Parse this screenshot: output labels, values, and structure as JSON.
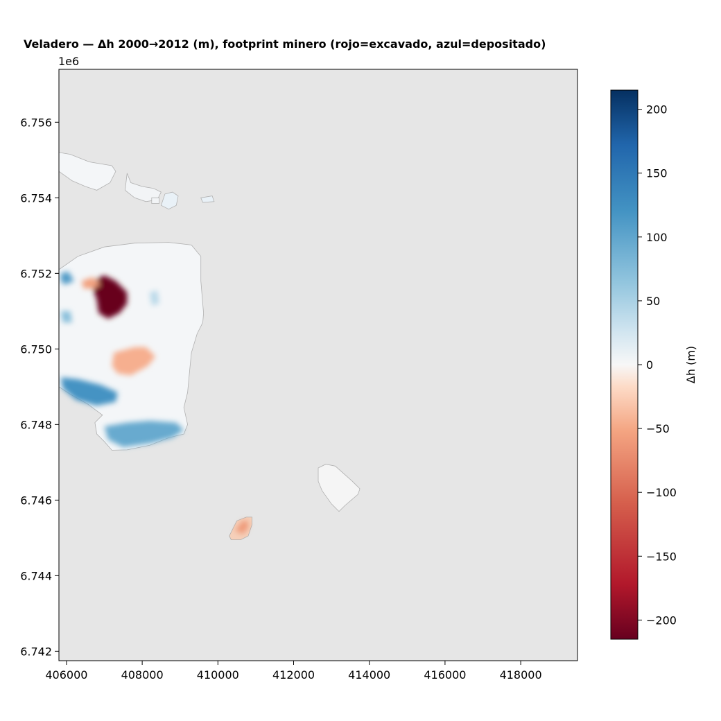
{
  "chart_data": {
    "type": "heatmap",
    "title": "Veladero — Δh 2000→2012 (m), footprint minero (rojo=excavado, azul=depositado)",
    "xlabel": "",
    "ylabel": "",
    "y_offset_label": "1e6",
    "xlim": [
      405800,
      419500
    ],
    "ylim": [
      6741750,
      6757400
    ],
    "x_ticks": [
      406000,
      408000,
      410000,
      412000,
      414000,
      416000,
      418000
    ],
    "x_tick_labels": [
      "406000",
      "408000",
      "410000",
      "412000",
      "414000",
      "416000",
      "418000"
    ],
    "y_ticks": [
      6742000,
      6744000,
      6746000,
      6748000,
      6750000,
      6752000,
      6754000,
      6756000
    ],
    "y_tick_labels": [
      "6.742",
      "6.744",
      "6.746",
      "6.748",
      "6.750",
      "6.752",
      "6.754",
      "6.756"
    ],
    "colorbar": {
      "label": "Δh (m)",
      "colormap": "RdBu",
      "vmin": -215,
      "vmax": 215,
      "ticks": [
        -200,
        -150,
        -100,
        -50,
        0,
        50,
        100,
        150,
        200
      ],
      "tick_labels": [
        "−200",
        "−150",
        "−100",
        "−50",
        "0",
        "50",
        "100",
        "150",
        "200"
      ]
    },
    "background_color": "#e6e6e6",
    "footprints": [
      {
        "name": "main-footprint",
        "fill": "#f4f6f8",
        "polygon": [
          [
            405800,
            6752100
          ],
          [
            406300,
            6752450
          ],
          [
            407000,
            6752700
          ],
          [
            407800,
            6752800
          ],
          [
            408700,
            6752820
          ],
          [
            409300,
            6752750
          ],
          [
            409550,
            6752450
          ],
          [
            409550,
            6751800
          ],
          [
            409620,
            6750950
          ],
          [
            409600,
            6750700
          ],
          [
            409450,
            6750400
          ],
          [
            409300,
            6749900
          ],
          [
            409250,
            6749400
          ],
          [
            409200,
            6748850
          ],
          [
            409100,
            6748450
          ],
          [
            409200,
            6748000
          ],
          [
            409100,
            6747750
          ],
          [
            408700,
            6747650
          ],
          [
            408200,
            6747450
          ],
          [
            407600,
            6747330
          ],
          [
            407200,
            6747320
          ],
          [
            407000,
            6747550
          ],
          [
            406800,
            6747750
          ],
          [
            406750,
            6748050
          ],
          [
            406950,
            6748250
          ],
          [
            406550,
            6748550
          ],
          [
            406100,
            6748800
          ],
          [
            405800,
            6749000
          ]
        ]
      },
      {
        "name": "nw-patch-1",
        "fill": "#f4f6f8",
        "polygon": [
          [
            405800,
            6755200
          ],
          [
            406100,
            6755150
          ],
          [
            406600,
            6754950
          ],
          [
            407200,
            6754850
          ],
          [
            407300,
            6754700
          ],
          [
            407150,
            6754400
          ],
          [
            406800,
            6754200
          ],
          [
            406500,
            6754300
          ],
          [
            406150,
            6754450
          ],
          [
            405800,
            6754700
          ]
        ]
      },
      {
        "name": "nw-patch-2",
        "fill": "#f2f4f6",
        "polygon": [
          [
            407600,
            6754650
          ],
          [
            407700,
            6754400
          ],
          [
            408000,
            6754300
          ],
          [
            408300,
            6754250
          ],
          [
            408500,
            6754150
          ],
          [
            408400,
            6753950
          ],
          [
            408100,
            6753900
          ],
          [
            407800,
            6754000
          ],
          [
            407550,
            6754200
          ]
        ]
      },
      {
        "name": "nw-patch-3",
        "fill": "#e9f1f7",
        "polygon": [
          [
            408600,
            6754100
          ],
          [
            408800,
            6754150
          ],
          [
            408950,
            6754050
          ],
          [
            408900,
            6753800
          ],
          [
            408700,
            6753700
          ],
          [
            408500,
            6753800
          ]
        ]
      },
      {
        "name": "nw-patch-4",
        "fill": "#f2f4f6",
        "polygon": [
          [
            408250,
            6754000
          ],
          [
            408450,
            6754000
          ],
          [
            408450,
            6753850
          ],
          [
            408250,
            6753850
          ]
        ]
      },
      {
        "name": "nw-patch-5",
        "fill": "#e9f1f7",
        "polygon": [
          [
            409550,
            6754000
          ],
          [
            409850,
            6754050
          ],
          [
            409900,
            6753900
          ],
          [
            409600,
            6753880
          ]
        ]
      },
      {
        "name": "se-patch",
        "fill": "#f5f5f5",
        "polygon": [
          [
            412650,
            6746850
          ],
          [
            412850,
            6746950
          ],
          [
            413100,
            6746900
          ],
          [
            413550,
            6746500
          ],
          [
            413750,
            6746300
          ],
          [
            413700,
            6746150
          ],
          [
            413350,
            6745850
          ],
          [
            413200,
            6745700
          ],
          [
            413000,
            6745900
          ],
          [
            412750,
            6746250
          ],
          [
            412650,
            6746500
          ]
        ]
      },
      {
        "name": "south-patch",
        "fill": "#f5d0ba",
        "polygon": [
          [
            410300,
            6745050
          ],
          [
            410500,
            6745450
          ],
          [
            410750,
            6745550
          ],
          [
            410900,
            6745550
          ],
          [
            410900,
            6745350
          ],
          [
            410800,
            6745050
          ],
          [
            410600,
            6744950
          ],
          [
            410350,
            6744950
          ]
        ]
      }
    ],
    "anomalies": [
      {
        "name": "excavated-pit-north",
        "value": -215,
        "polygon": [
          [
            406800,
            6751850
          ],
          [
            407000,
            6751950
          ],
          [
            407300,
            6751800
          ],
          [
            407600,
            6751500
          ],
          [
            407600,
            6751200
          ],
          [
            407400,
            6750950
          ],
          [
            407100,
            6750800
          ],
          [
            406850,
            6750950
          ],
          [
            406800,
            6751300
          ],
          [
            406700,
            6751600
          ]
        ]
      },
      {
        "name": "excavated-pit-south",
        "value": -215,
        "polygon": [
          [
            407400,
            6749800
          ],
          [
            407700,
            6749850
          ],
          [
            407850,
            6749950
          ],
          [
            408000,
            6750000
          ],
          [
            408100,
            6749800
          ],
          [
            408200,
            6749700
          ],
          [
            407950,
            6749500
          ],
          [
            407650,
            6749400
          ],
          [
            407450,
            6749350
          ],
          [
            407300,
            6749500
          ],
          [
            407300,
            6749650
          ]
        ]
      },
      {
        "name": "excavation-rim-north",
        "value": -55,
        "polygon": [
          [
            406400,
            6751800
          ],
          [
            406700,
            6751900
          ],
          [
            406900,
            6751700
          ],
          [
            406700,
            6751600
          ],
          [
            406450,
            6751600
          ]
        ]
      },
      {
        "name": "excavation-rim-south",
        "value": -45,
        "polygon": [
          [
            407250,
            6749900
          ],
          [
            407800,
            6750050
          ],
          [
            408100,
            6750050
          ],
          [
            408350,
            6749800
          ],
          [
            408150,
            6749550
          ],
          [
            407700,
            6749300
          ],
          [
            407350,
            6749350
          ],
          [
            407200,
            6749550
          ]
        ]
      },
      {
        "name": "deposit-band-west",
        "value": 120,
        "polygon": [
          [
            405850,
            6749250
          ],
          [
            406300,
            6749200
          ],
          [
            406900,
            6749050
          ],
          [
            407350,
            6748850
          ],
          [
            407300,
            6748600
          ],
          [
            406800,
            6748500
          ],
          [
            406250,
            6748650
          ],
          [
            405900,
            6748950
          ]
        ]
      },
      {
        "name": "deposit-band-south",
        "value": 95,
        "polygon": [
          [
            407000,
            6747950
          ],
          [
            407600,
            6748050
          ],
          [
            408200,
            6748100
          ],
          [
            408900,
            6748050
          ],
          [
            409100,
            6747850
          ],
          [
            408800,
            6747650
          ],
          [
            408200,
            6747500
          ],
          [
            407500,
            6747400
          ],
          [
            407100,
            6747600
          ]
        ]
      },
      {
        "name": "deposit-edge-nw",
        "value": 110,
        "polygon": [
          [
            405850,
            6752000
          ],
          [
            406050,
            6752050
          ],
          [
            406200,
            6751800
          ],
          [
            405950,
            6751700
          ],
          [
            405850,
            6751800
          ]
        ]
      },
      {
        "name": "deposit-edge-w",
        "value": 70,
        "polygon": [
          [
            405850,
            6751000
          ],
          [
            406100,
            6751000
          ],
          [
            406150,
            6750700
          ],
          [
            405900,
            6750700
          ]
        ]
      },
      {
        "name": "deposit-inner",
        "value": 40,
        "polygon": [
          [
            408200,
            6751500
          ],
          [
            408400,
            6751550
          ],
          [
            408450,
            6751200
          ],
          [
            408250,
            6751150
          ]
        ]
      },
      {
        "name": "excavation-south-patch",
        "value": -60,
        "polygon": [
          [
            410450,
            6745200
          ],
          [
            410650,
            6745450
          ],
          [
            410800,
            6745450
          ],
          [
            410800,
            6745250
          ],
          [
            410650,
            6745100
          ]
        ]
      }
    ],
    "grid": false,
    "legend": "none"
  }
}
